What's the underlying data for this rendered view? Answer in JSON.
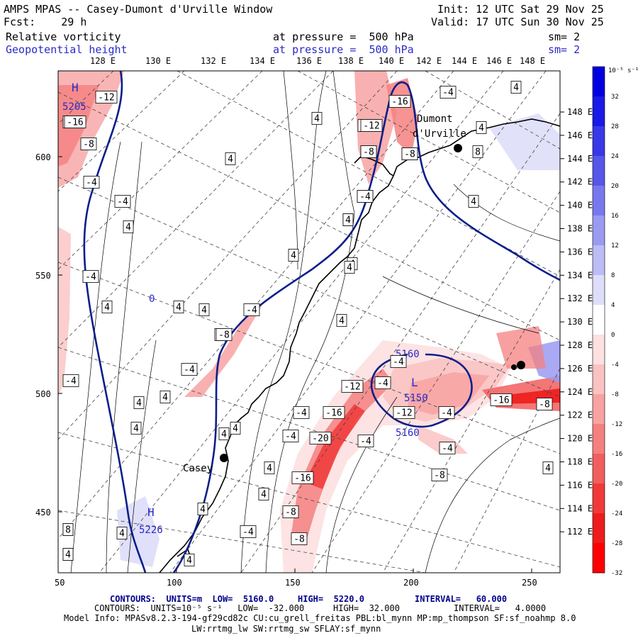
{
  "header": {
    "title": "AMPS MPAS -- Casey-Dumont d'Urville Window",
    "init": "Init: 12 UTC Sat 29 Nov 25",
    "fcst": "Fcst:    29 h",
    "valid": "Valid: 17 UTC Sun 30 Nov 25",
    "field1_name": "Relative vorticity",
    "field1_level": "at pressure =  500 hPa",
    "field1_sm": "sm= 2",
    "field2_name": "Geopotential height",
    "field2_level": "at pressure =  500 hPa",
    "field2_sm": "sm= 2"
  },
  "top_lon_labels": [
    "128 E",
    "130 E",
    "132 E",
    "134 E",
    "136 E",
    "138 E",
    "140 E",
    "142 E",
    "144 E",
    "146 E",
    "148 E"
  ],
  "right_lat_labels": [
    "148 E",
    "146 E",
    "144 E",
    "142 E",
    "140 E",
    "138 E",
    "136 E",
    "134 E",
    "132 E",
    "130 E",
    "128 E",
    "126 E",
    "124 E",
    "122 E",
    "120 E",
    "118 E",
    "116 E",
    "114 E",
    "112 E"
  ],
  "x_ticks": [
    "50",
    "100",
    "150",
    "200",
    "250"
  ],
  "y_ticks": [
    "600",
    "550",
    "500",
    "450"
  ],
  "colorbar": {
    "unit": "10⁻⁵ s⁻¹",
    "labels": [
      "32",
      "28",
      "24",
      "20",
      "16",
      "12",
      "8",
      "4",
      "0",
      "-4",
      "-8",
      "-12",
      "-16",
      "-20",
      "-24",
      "-28",
      "-32"
    ],
    "colors": [
      "#0000e0",
      "#1a1ae6",
      "#3838e8",
      "#5656ea",
      "#7878ee",
      "#9a9af2",
      "#bcbcf6",
      "#dedefa",
      "#ffffff",
      "#fde0e0",
      "#fbc2c2",
      "#f8a2a2",
      "#f58080",
      "#f25e5e",
      "#f03a3a",
      "#ee1c1c",
      "#ff0000"
    ]
  },
  "places": {
    "dumont": "Dumont",
    "durville": "d'Urville",
    "casey": "Casey"
  },
  "centers": {
    "low": "L",
    "low_val": "5150",
    "high1": "H",
    "high1_val": "5205",
    "high2": "H",
    "high2_val": "5226",
    "label_5160_a": "5160",
    "label_5160_b": "5160",
    "zero_label": "0"
  },
  "contour_labels": [
    "-12",
    "-16",
    "-8",
    "-4",
    "-4",
    "4",
    "4",
    "4",
    "-4",
    "4",
    "4",
    "4",
    "-4",
    "4",
    "4",
    "-8",
    "-4",
    "-4",
    "4",
    "4",
    "4",
    "4",
    "4",
    "4",
    "4",
    "4",
    "-4",
    "-16",
    "-12",
    "-8",
    "-8",
    "-4",
    "4",
    "4",
    "4",
    "4",
    "-4",
    "-4",
    "-12",
    "-16",
    "-20",
    "-16",
    "-4",
    "-8",
    "-4",
    "-8",
    "4",
    "4",
    "4",
    "4",
    "4",
    "-4",
    "-4",
    "-12",
    "-4",
    "-8",
    "-16",
    "-8",
    "4",
    "-4",
    "4",
    "-16",
    "-12",
    "-8",
    "-8",
    "-4",
    "4",
    "8",
    "4",
    "8",
    "4"
  ],
  "footer": {
    "line1_a": "CONTOURS:  UNITS=m  LOW=  5160.0",
    "line1_b": "HIGH=  5220.0",
    "line1_c": "INTERVAL=   60.000",
    "line2_a": "CONTOURS:  UNITS=10⁻⁵ s⁻¹   LOW=  -32.000",
    "line2_b": "HIGH=  32.000",
    "line2_c": "INTERVAL=   4.0000",
    "line3": "Model Info: MPASv8.2.3-194-gf29cd82c CU:cu_grell_freitas PBL:bl_mynn MP:mp_thompson SF:sf_noahmp 8.0",
    "line4": "LW:rrtmg_lw SW:rrtmg_sw SFLAY:sf_mynn"
  }
}
